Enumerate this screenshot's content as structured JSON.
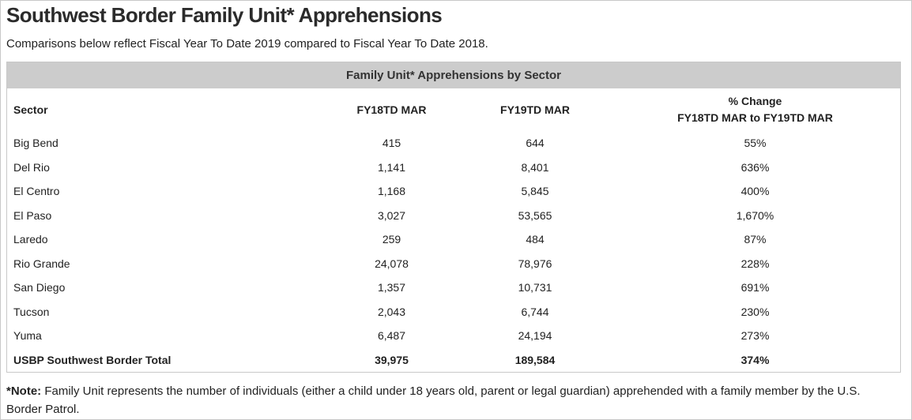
{
  "header": {
    "title": "Southwest Border Family Unit* Apprehensions",
    "subtitle": "Comparisons below reflect Fiscal Year To Date 2019 compared to Fiscal Year To Date 2018."
  },
  "table": {
    "caption": "Family Unit* Apprehensions by Sector",
    "columns": {
      "sector": "Sector",
      "fy18": "FY18TD MAR",
      "fy19": "FY19TD MAR",
      "pct_line1": "% Change",
      "pct_line2": "FY18TD MAR to FY19TD MAR"
    },
    "rows": [
      {
        "sector": "Big Bend",
        "fy18": "415",
        "fy19": "644",
        "pct": "55%"
      },
      {
        "sector": "Del Rio",
        "fy18": "1,141",
        "fy19": "8,401",
        "pct": "636%"
      },
      {
        "sector": "El Centro",
        "fy18": "1,168",
        "fy19": "5,845",
        "pct": "400%"
      },
      {
        "sector": "El Paso",
        "fy18": "3,027",
        "fy19": "53,565",
        "pct": "1,670%"
      },
      {
        "sector": "Laredo",
        "fy18": "259",
        "fy19": "484",
        "pct": "87%"
      },
      {
        "sector": "Rio Grande",
        "fy18": "24,078",
        "fy19": "78,976",
        "pct": "228%"
      },
      {
        "sector": "San Diego",
        "fy18": "1,357",
        "fy19": "10,731",
        "pct": "691%"
      },
      {
        "sector": "Tucson",
        "fy18": "2,043",
        "fy19": "6,744",
        "pct": "230%"
      },
      {
        "sector": "Yuma",
        "fy18": "6,487",
        "fy19": "24,194",
        "pct": "273%"
      }
    ],
    "total": {
      "sector": "USBP Southwest Border Total",
      "fy18": "39,975",
      "fy19": "189,584",
      "pct": "374%"
    }
  },
  "note": {
    "label": "*Note:",
    "text": " Family Unit represents the number of individuals (either a child under 18 years old, parent or legal guardian) apprehended with a family member by the U.S. Border Patrol."
  }
}
